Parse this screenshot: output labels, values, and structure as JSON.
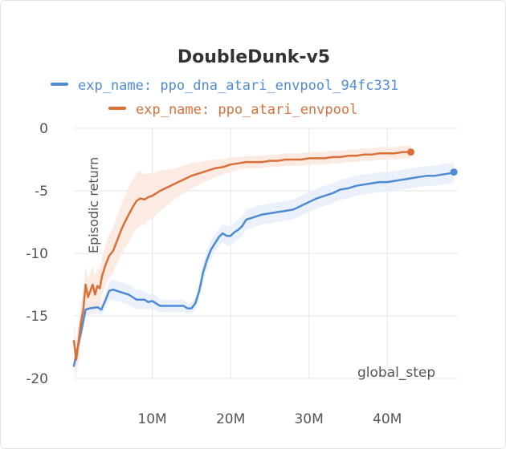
{
  "chart_data": {
    "type": "line",
    "title": "DoubleDunk-v5",
    "xlabel": "global_step",
    "ylabel": "Episodic return",
    "xlim": [
      0,
      49000000
    ],
    "ylim": [
      -20,
      0
    ],
    "x_ticks": [
      {
        "value": 10000000,
        "label": "10M"
      },
      {
        "value": 20000000,
        "label": "20M"
      },
      {
        "value": 30000000,
        "label": "30M"
      },
      {
        "value": 40000000,
        "label": "40M"
      }
    ],
    "y_ticks": [
      {
        "value": 0,
        "label": "0"
      },
      {
        "value": -5,
        "label": "-5"
      },
      {
        "value": -10,
        "label": "-10"
      },
      {
        "value": -15,
        "label": "-15"
      },
      {
        "value": -20,
        "label": "-20"
      }
    ],
    "grid": true,
    "legend_position": "top",
    "series": [
      {
        "name": "exp_name: ppo_dna_atari_envpool_94fc331",
        "color": "#4e8bd4",
        "band_color": "#e6eefa",
        "x": [
          0,
          500000,
          1000000,
          1500000,
          2000000,
          3000000,
          3500000,
          4000000,
          4500000,
          5000000,
          6000000,
          7000000,
          8000000,
          9000000,
          9500000,
          10000000,
          10500000,
          11000000,
          12000000,
          13000000,
          14000000,
          14500000,
          15000000,
          15500000,
          16000000,
          16500000,
          17000000,
          17500000,
          18000000,
          18500000,
          19000000,
          19500000,
          20000000,
          20500000,
          21000000,
          21500000,
          22000000,
          23000000,
          24000000,
          25000000,
          26000000,
          27000000,
          28000000,
          29000000,
          30000000,
          31000000,
          32000000,
          33000000,
          34000000,
          35000000,
          36000000,
          37000000,
          38000000,
          39000000,
          40000000,
          41000000,
          42000000,
          43000000,
          44000000,
          45000000,
          46000000,
          47000000,
          48000000,
          48500000
        ],
        "y": [
          -19,
          -17.5,
          -16,
          -14.5,
          -14.4,
          -14.3,
          -14.5,
          -13.8,
          -13,
          -12.9,
          -13.1,
          -13.3,
          -13.7,
          -13.7,
          -13.9,
          -13.8,
          -14,
          -14.2,
          -14.2,
          -14.2,
          -14.2,
          -14.4,
          -14.4,
          -14,
          -13,
          -11.5,
          -10.5,
          -9.7,
          -9.2,
          -8.7,
          -8.4,
          -8.6,
          -8.6,
          -8.3,
          -8.1,
          -7.8,
          -7.3,
          -7.1,
          -6.9,
          -6.8,
          -6.7,
          -6.6,
          -6.5,
          -6.2,
          -5.9,
          -5.6,
          -5.4,
          -5.2,
          -4.9,
          -4.8,
          -4.6,
          -4.5,
          -4.4,
          -4.3,
          -4.3,
          -4.2,
          -4.1,
          -4.0,
          -3.9,
          -3.8,
          -3.8,
          -3.7,
          -3.6,
          -3.5
        ],
        "band_halfwidth": [
          0.8,
          0.8,
          0.8,
          0.6,
          0.5,
          0.5,
          0.5,
          0.6,
          0.7,
          0.8,
          0.8,
          0.8,
          0.8,
          0.7,
          0.6,
          0.6,
          0.6,
          0.5,
          0.5,
          0.5,
          0.5,
          0.4,
          0.4,
          0.5,
          0.6,
          0.8,
          0.8,
          0.8,
          0.7,
          0.7,
          0.7,
          0.8,
          0.8,
          0.8,
          0.8,
          0.8,
          0.8,
          0.8,
          0.8,
          0.8,
          0.8,
          0.8,
          0.8,
          0.8,
          0.8,
          0.8,
          0.8,
          0.8,
          0.8,
          0.8,
          0.8,
          0.8,
          0.8,
          0.8,
          0.8,
          0.8,
          0.8,
          0.8,
          0.8,
          0.8,
          0.8,
          0.8,
          0.8,
          0.8
        ]
      },
      {
        "name": "exp_name: ppo_atari_envpool",
        "color": "#d9703a",
        "band_color": "#fbe8de",
        "x": [
          0,
          300000,
          600000,
          900000,
          1200000,
          1500000,
          1800000,
          2100000,
          2400000,
          2700000,
          3000000,
          3300000,
          3600000,
          4000000,
          4500000,
          5000000,
          5500000,
          6000000,
          6500000,
          7000000,
          7500000,
          8000000,
          8500000,
          9000000,
          9500000,
          10000000,
          11000000,
          12000000,
          13000000,
          14000000,
          15000000,
          16000000,
          17000000,
          18000000,
          19000000,
          20000000,
          21000000,
          22000000,
          23000000,
          24000000,
          25000000,
          26000000,
          27000000,
          28000000,
          29000000,
          30000000,
          31000000,
          32000000,
          33000000,
          34000000,
          35000000,
          36000000,
          37000000,
          38000000,
          39000000,
          40000000,
          41000000,
          42000000,
          43000000
        ],
        "y": [
          -17,
          -18.5,
          -17,
          -15.5,
          -14.5,
          -12.5,
          -13.5,
          -13,
          -12.5,
          -13.3,
          -12.6,
          -12.8,
          -11.8,
          -11,
          -10.2,
          -9.8,
          -9,
          -8.2,
          -7.5,
          -6.9,
          -6.3,
          -5.8,
          -5.6,
          -5.7,
          -5.5,
          -5.4,
          -5.0,
          -4.7,
          -4.4,
          -4.1,
          -3.8,
          -3.6,
          -3.4,
          -3.2,
          -3.1,
          -2.9,
          -2.8,
          -2.7,
          -2.7,
          -2.7,
          -2.6,
          -2.6,
          -2.5,
          -2.5,
          -2.5,
          -2.4,
          -2.4,
          -2.4,
          -2.3,
          -2.3,
          -2.2,
          -2.2,
          -2.1,
          -2.1,
          -2.0,
          -2.0,
          -2.0,
          -1.9,
          -1.9
        ],
        "band_halfwidth": [
          1.5,
          1.5,
          1.5,
          1.5,
          1.5,
          1.5,
          1.5,
          1.5,
          1.5,
          1.5,
          1.5,
          1.5,
          1.5,
          1.6,
          1.7,
          1.8,
          1.9,
          2.0,
          2.1,
          2.2,
          2.2,
          2.2,
          2.2,
          2.0,
          1.9,
          1.8,
          1.6,
          1.4,
          1.2,
          1.1,
          1.0,
          0.9,
          0.8,
          0.7,
          0.6,
          0.6,
          0.5,
          0.5,
          0.5,
          0.5,
          0.5,
          0.5,
          0.5,
          0.5,
          0.5,
          0.5,
          0.5,
          0.5,
          0.5,
          0.5,
          0.5,
          0.5,
          0.5,
          0.5,
          0.5,
          0.5,
          0.5,
          0.5,
          0.5
        ]
      }
    ]
  }
}
